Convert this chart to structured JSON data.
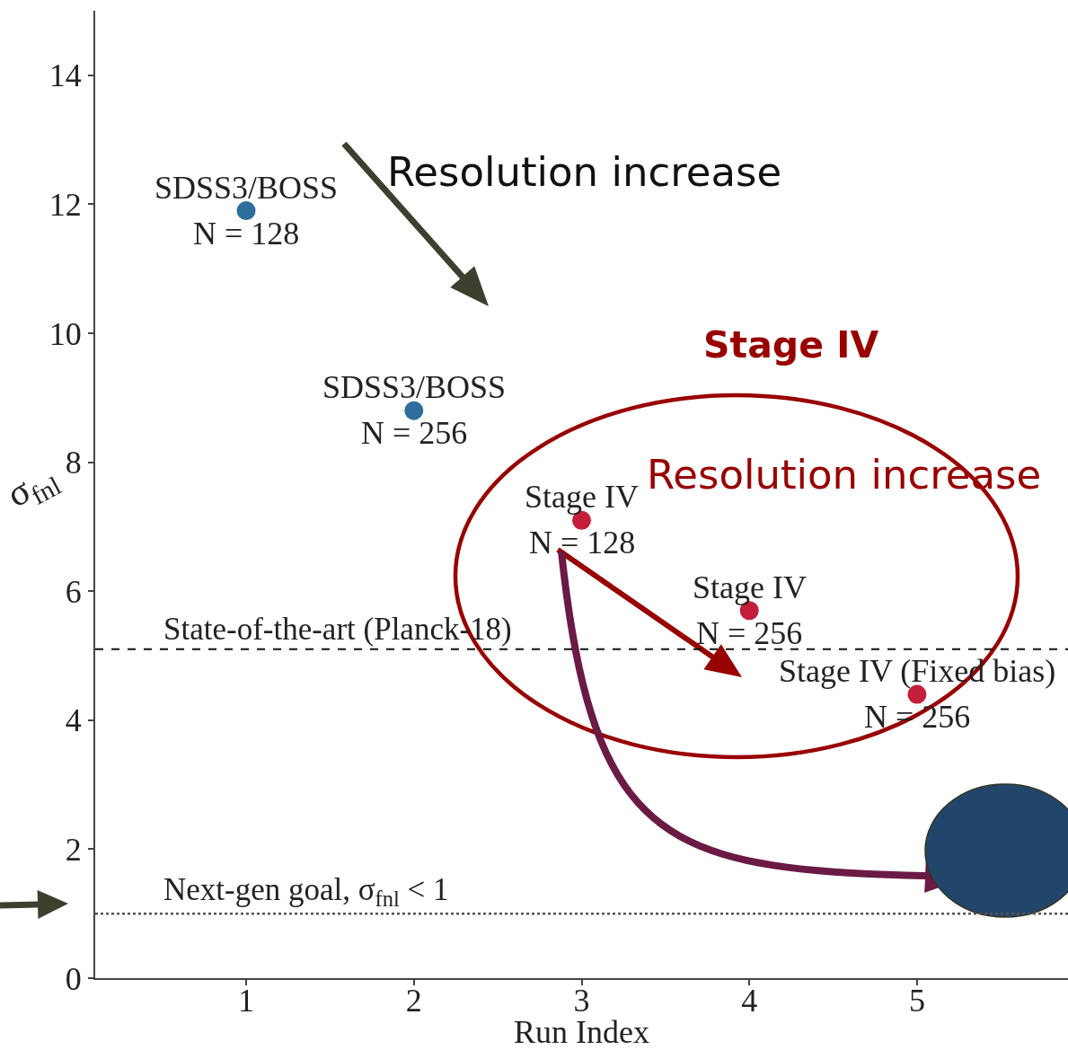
{
  "chart_data": {
    "type": "scatter",
    "xlabel": "Run Index",
    "ylabel": "σ$_{fnl}$",
    "x": [
      1,
      2,
      3,
      4,
      5
    ],
    "values": [
      11.9,
      8.8,
      7.1,
      5.7,
      4.4
    ],
    "colors": [
      "#2e6e9e",
      "#2e6e9e",
      "#c41e3a",
      "#c41e3a",
      "#c41e3a"
    ],
    "marker": "circle",
    "xlim": [
      0.1,
      5.9
    ],
    "ylim": [
      0,
      15
    ],
    "xticks": [
      1,
      2,
      3,
      4,
      5
    ],
    "yticks": [
      0,
      2,
      4,
      6,
      8,
      10,
      12,
      14
    ],
    "ref_lines": [
      {
        "axis": "y",
        "value": 5.1,
        "label": "State-of-the-art (Planck-18)",
        "line_style": "dashed",
        "color": "#111111"
      },
      {
        "axis": "y",
        "value": 1,
        "label": "Next-gen goal, σ$_{fnl}$ < 1",
        "line_style": "dotted",
        "color": "#555555"
      }
    ],
    "annotations": [
      {
        "text": "SDSS3/BOSS\nN = 128",
        "x": 1,
        "y": 11.9
      },
      {
        "text": "SDSS3/BOSS\nN = 256",
        "x": 2,
        "y": 8.8
      },
      {
        "text": "Stage IV\nN = 128",
        "x": 3,
        "y": 7.1
      },
      {
        "text": "Stage IV\nN = 256",
        "x": 4,
        "y": 5.7
      },
      {
        "text": "Stage IV (Fixed bias)\nN = 256",
        "x": 5,
        "y": 4.4
      },
      "Resolution increase",
      "Stage IV",
      "Resolution increase"
    ]
  }
}
